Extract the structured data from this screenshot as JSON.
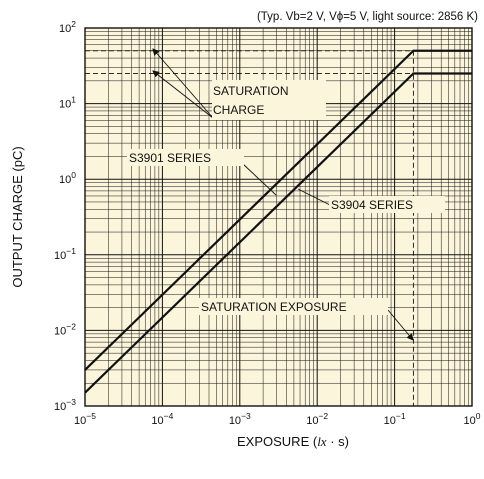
{
  "chart_data": {
    "type": "line",
    "xscale": "log",
    "yscale": "log",
    "xlim": [
      1e-05,
      1
    ],
    "ylim": [
      0.001,
      100
    ],
    "grid": true,
    "background": "#fbf5dc",
    "line_color": "#111111",
    "condition_note": "(Typ. Vb=2 V, Vϕ=5 V, light source: 2856 K)",
    "xlabel": {
      "main": "EXPOSURE (",
      "unit": "lx",
      "mid": " · s",
      "end": ")"
    },
    "ylabel": "OUTPUT CHARGE (pC)",
    "x_ticks": [
      {
        "value": 1e-05,
        "base": "10",
        "exp": "−5"
      },
      {
        "value": 0.0001,
        "base": "10",
        "exp": "−4"
      },
      {
        "value": 0.001,
        "base": "10",
        "exp": "−3"
      },
      {
        "value": 0.01,
        "base": "10",
        "exp": "−2"
      },
      {
        "value": 0.1,
        "base": "10",
        "exp": "−1"
      },
      {
        "value": 1,
        "base": "10",
        "exp": "0"
      }
    ],
    "y_ticks": [
      {
        "value": 0.001,
        "base": "10",
        "exp": "−3"
      },
      {
        "value": 0.01,
        "base": "10",
        "exp": "−2"
      },
      {
        "value": 0.1,
        "base": "10",
        "exp": "−1"
      },
      {
        "value": 1,
        "base": "10",
        "exp": "0"
      },
      {
        "value": 10,
        "base": "10",
        "exp": "1"
      },
      {
        "value": 100,
        "base": "10",
        "exp": "2"
      }
    ],
    "series": [
      {
        "name": "S3901 SERIES",
        "x": [
          1e-05,
          0.175,
          1
        ],
        "y": [
          0.003,
          50,
          50
        ],
        "saturation_charge": 50,
        "saturation_exposure": 0.175
      },
      {
        "name": "S3904 SERIES",
        "x": [
          1e-05,
          0.175,
          1
        ],
        "y": [
          0.0015,
          25,
          25
        ],
        "saturation_charge": 25,
        "saturation_exposure": 0.175
      }
    ],
    "annotations": [
      {
        "text": "SATURATION",
        "line2": "CHARGE",
        "points_to": "saturation charge levels"
      },
      {
        "text": "SATURATION EXPOSURE",
        "points_to": "saturation exposure"
      }
    ]
  }
}
